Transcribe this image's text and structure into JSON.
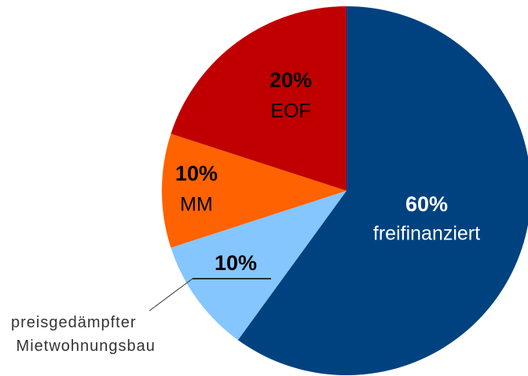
{
  "chart_data": {
    "type": "pie",
    "categories": [
      "freifinanziert",
      "preisgedämpfter Mietwohnungsbau",
      "MM",
      "EOF"
    ],
    "values": [
      60,
      10,
      10,
      20
    ],
    "value_labels": [
      "60%",
      "10%",
      "10%",
      "20%"
    ],
    "colors": [
      "#00427f",
      "#85c6ff",
      "#ff6200",
      "#c00000"
    ]
  }
}
